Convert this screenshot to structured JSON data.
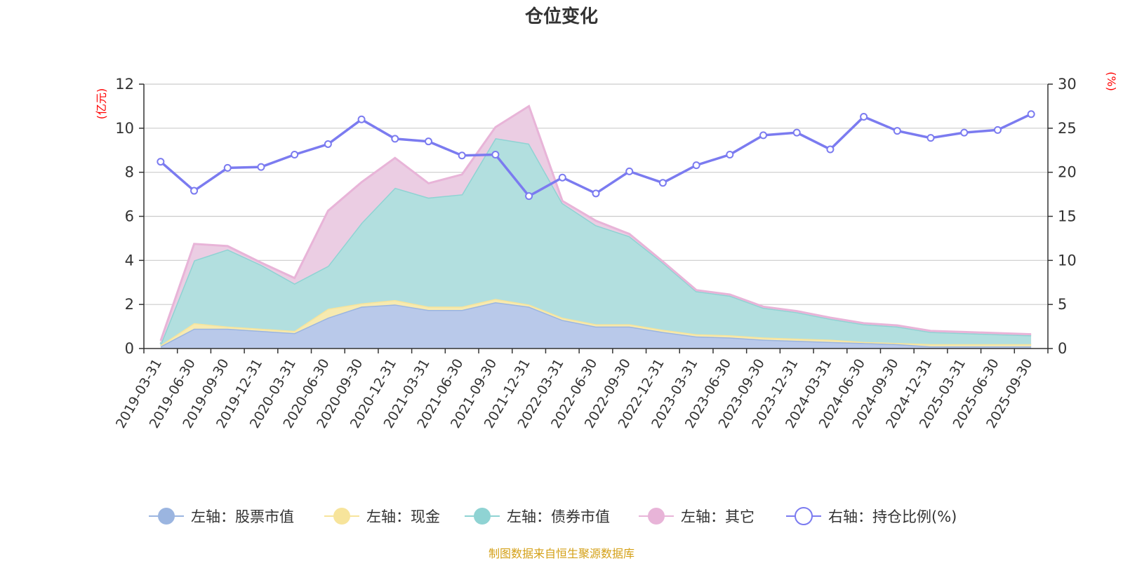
{
  "chart_data": {
    "type": "area",
    "title": "仓位变化",
    "left_unit": "(亿元)",
    "right_unit": "(%)",
    "unit_color": "#ff0000",
    "left_ylim": [
      0,
      12
    ],
    "right_ylim": [
      0,
      30
    ],
    "left_ticks": [
      "0",
      "2",
      "4",
      "6",
      "8",
      "10",
      "12"
    ],
    "right_ticks": [
      "0",
      "5",
      "10",
      "15",
      "20",
      "25",
      "30"
    ],
    "categories": [
      "2019-03-31",
      "2019-06-30",
      "2019-09-30",
      "2019-12-31",
      "2020-03-31",
      "2020-06-30",
      "2020-09-30",
      "2020-12-31",
      "2021-03-31",
      "2021-06-30",
      "2021-09-30",
      "2021-12-31",
      "2022-03-31",
      "2022-06-30",
      "2022-09-30",
      "2022-12-31",
      "2023-03-31",
      "2023-06-30",
      "2023-09-30",
      "2023-12-31",
      "2024-03-31",
      "2024-06-30",
      "2024-09-30",
      "2024-12-31",
      "2025-03-31",
      "2025-06-30",
      "2025-09-30"
    ],
    "series": [
      {
        "name": "左轴：股票市值",
        "axis": "left",
        "color": "#9bb5e0",
        "fill": "#b9c9ea",
        "values": [
          0.1,
          0.9,
          0.9,
          0.8,
          0.7,
          1.4,
          1.9,
          2.0,
          1.75,
          1.75,
          2.1,
          1.9,
          1.3,
          1.0,
          1.0,
          0.75,
          0.55,
          0.5,
          0.4,
          0.35,
          0.3,
          0.25,
          0.2,
          0.1,
          0.1,
          0.1,
          0.1
        ]
      },
      {
        "name": "左轴：现金",
        "axis": "left",
        "color": "#f7e49b",
        "fill": "#f7eab0",
        "values": [
          0.05,
          0.25,
          0.1,
          0.1,
          0.1,
          0.4,
          0.15,
          0.2,
          0.15,
          0.15,
          0.15,
          0.1,
          0.1,
          0.1,
          0.1,
          0.1,
          0.1,
          0.1,
          0.1,
          0.1,
          0.1,
          0.05,
          0.05,
          0.1,
          0.1,
          0.1,
          0.1
        ]
      },
      {
        "name": "左轴：债券市值",
        "axis": "left",
        "color": "#8fd3d3",
        "fill": "#b2dfdf",
        "values": [
          0.05,
          2.85,
          3.5,
          2.9,
          2.15,
          1.95,
          3.65,
          5.1,
          4.95,
          5.1,
          7.3,
          7.3,
          5.2,
          4.5,
          4.0,
          3.05,
          1.95,
          1.8,
          1.35,
          1.2,
          0.95,
          0.8,
          0.75,
          0.55,
          0.5,
          0.45,
          0.4
        ]
      },
      {
        "name": "左轴：其它",
        "axis": "left",
        "color": "#e8b4d8",
        "fill": "#ebcde3",
        "values": [
          0.15,
          0.75,
          0.15,
          0.1,
          0.25,
          2.5,
          1.85,
          1.35,
          0.65,
          0.9,
          0.5,
          1.7,
          0.1,
          0.2,
          0.1,
          0.05,
          0.05,
          0.05,
          0.05,
          0.05,
          0.05,
          0.05,
          0.05,
          0.05,
          0.05,
          0.05,
          0.05
        ]
      },
      {
        "name": "右轴：持仓比例(%)",
        "axis": "right",
        "color": "#7b7bf0",
        "values": [
          21.2,
          17.9,
          20.5,
          20.6,
          22.0,
          23.2,
          26.0,
          23.8,
          23.5,
          21.9,
          22.0,
          17.3,
          19.4,
          17.6,
          20.1,
          18.8,
          20.8,
          22.0,
          24.2,
          24.5,
          22.6,
          26.3,
          24.7,
          23.9,
          24.5,
          24.8,
          26.6
        ]
      }
    ],
    "legend_position": "bottom",
    "grid": true
  },
  "footer": {
    "source_text": "制图数据来自恒生聚源数据库",
    "source_color": "#d4a017"
  }
}
